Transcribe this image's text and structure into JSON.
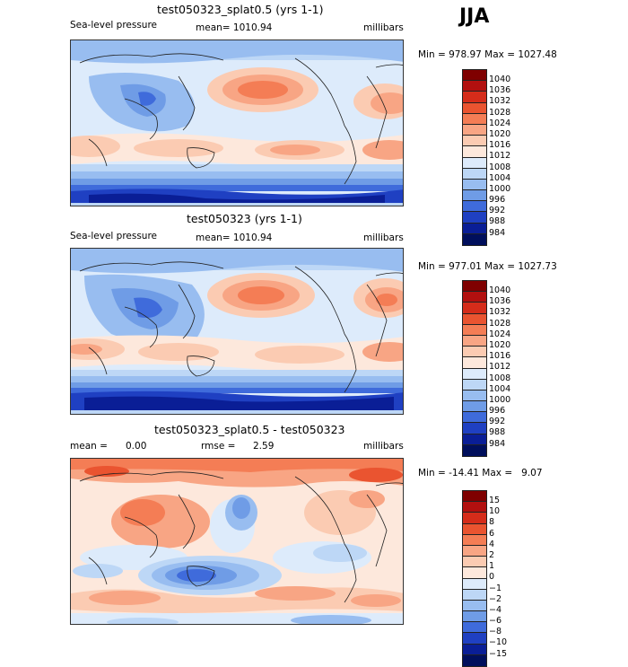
{
  "season": "JJA",
  "panels": [
    {
      "title": "test050323_splat0.5 (yrs 1-1)",
      "left_label": "Sea-level pressure",
      "center_label": "mean= 1010.94",
      "units": "millibars",
      "minmax": "Min = 978.97 Max = 1027.48",
      "colorbar": {
        "levels": [
          "1040",
          "1036",
          "1032",
          "1028",
          "1024",
          "1020",
          "1016",
          "1012",
          "1008",
          "1004",
          "1000",
          "996",
          "992",
          "988",
          "984"
        ],
        "colors": [
          "#7f0000",
          "#b2100f",
          "#d52c1a",
          "#ea5430",
          "#f47d55",
          "#f8a584",
          "#fbcbb2",
          "#fde8dc",
          "#ddebfb",
          "#bdd7f6",
          "#98bdf0",
          "#6f9ce6",
          "#3f6bdb",
          "#1f40c2",
          "#0a1e96",
          "#000f5c"
        ]
      }
    },
    {
      "title": "test050323 (yrs 1-1)",
      "left_label": "Sea-level pressure",
      "center_label": "mean= 1010.94",
      "units": "millibars",
      "minmax": "Min = 977.01 Max = 1027.73",
      "colorbar": {
        "levels": [
          "1040",
          "1036",
          "1032",
          "1028",
          "1024",
          "1020",
          "1016",
          "1012",
          "1008",
          "1004",
          "1000",
          "996",
          "992",
          "988",
          "984"
        ],
        "colors": [
          "#7f0000",
          "#b2100f",
          "#d52c1a",
          "#ea5430",
          "#f47d55",
          "#f8a584",
          "#fbcbb2",
          "#fde8dc",
          "#ddebfb",
          "#bdd7f6",
          "#98bdf0",
          "#6f9ce6",
          "#3f6bdb",
          "#1f40c2",
          "#0a1e96",
          "#000f5c"
        ]
      }
    },
    {
      "title": "test050323_splat0.5 - test050323",
      "mean_label": "mean =",
      "mean_value": "0.00",
      "rmse_label": "rmse =",
      "rmse_value": "2.59",
      "units": "millibars",
      "minmax": "Min = -14.41 Max =   9.07",
      "colorbar": {
        "levels": [
          "15",
          "10",
          "8",
          "6",
          "4",
          "2",
          "1",
          "0",
          "−1",
          "−2",
          "−4",
          "−6",
          "−8",
          "−10",
          "−15"
        ],
        "colors": [
          "#7f0000",
          "#b2100f",
          "#d52c1a",
          "#ea5430",
          "#f47d55",
          "#f8a584",
          "#fbcbb2",
          "#fde8dc",
          "#ddebfb",
          "#bdd7f6",
          "#98bdf0",
          "#6f9ce6",
          "#3f6bdb",
          "#1f40c2",
          "#0a1e96",
          "#000f5c"
        ]
      }
    }
  ]
}
